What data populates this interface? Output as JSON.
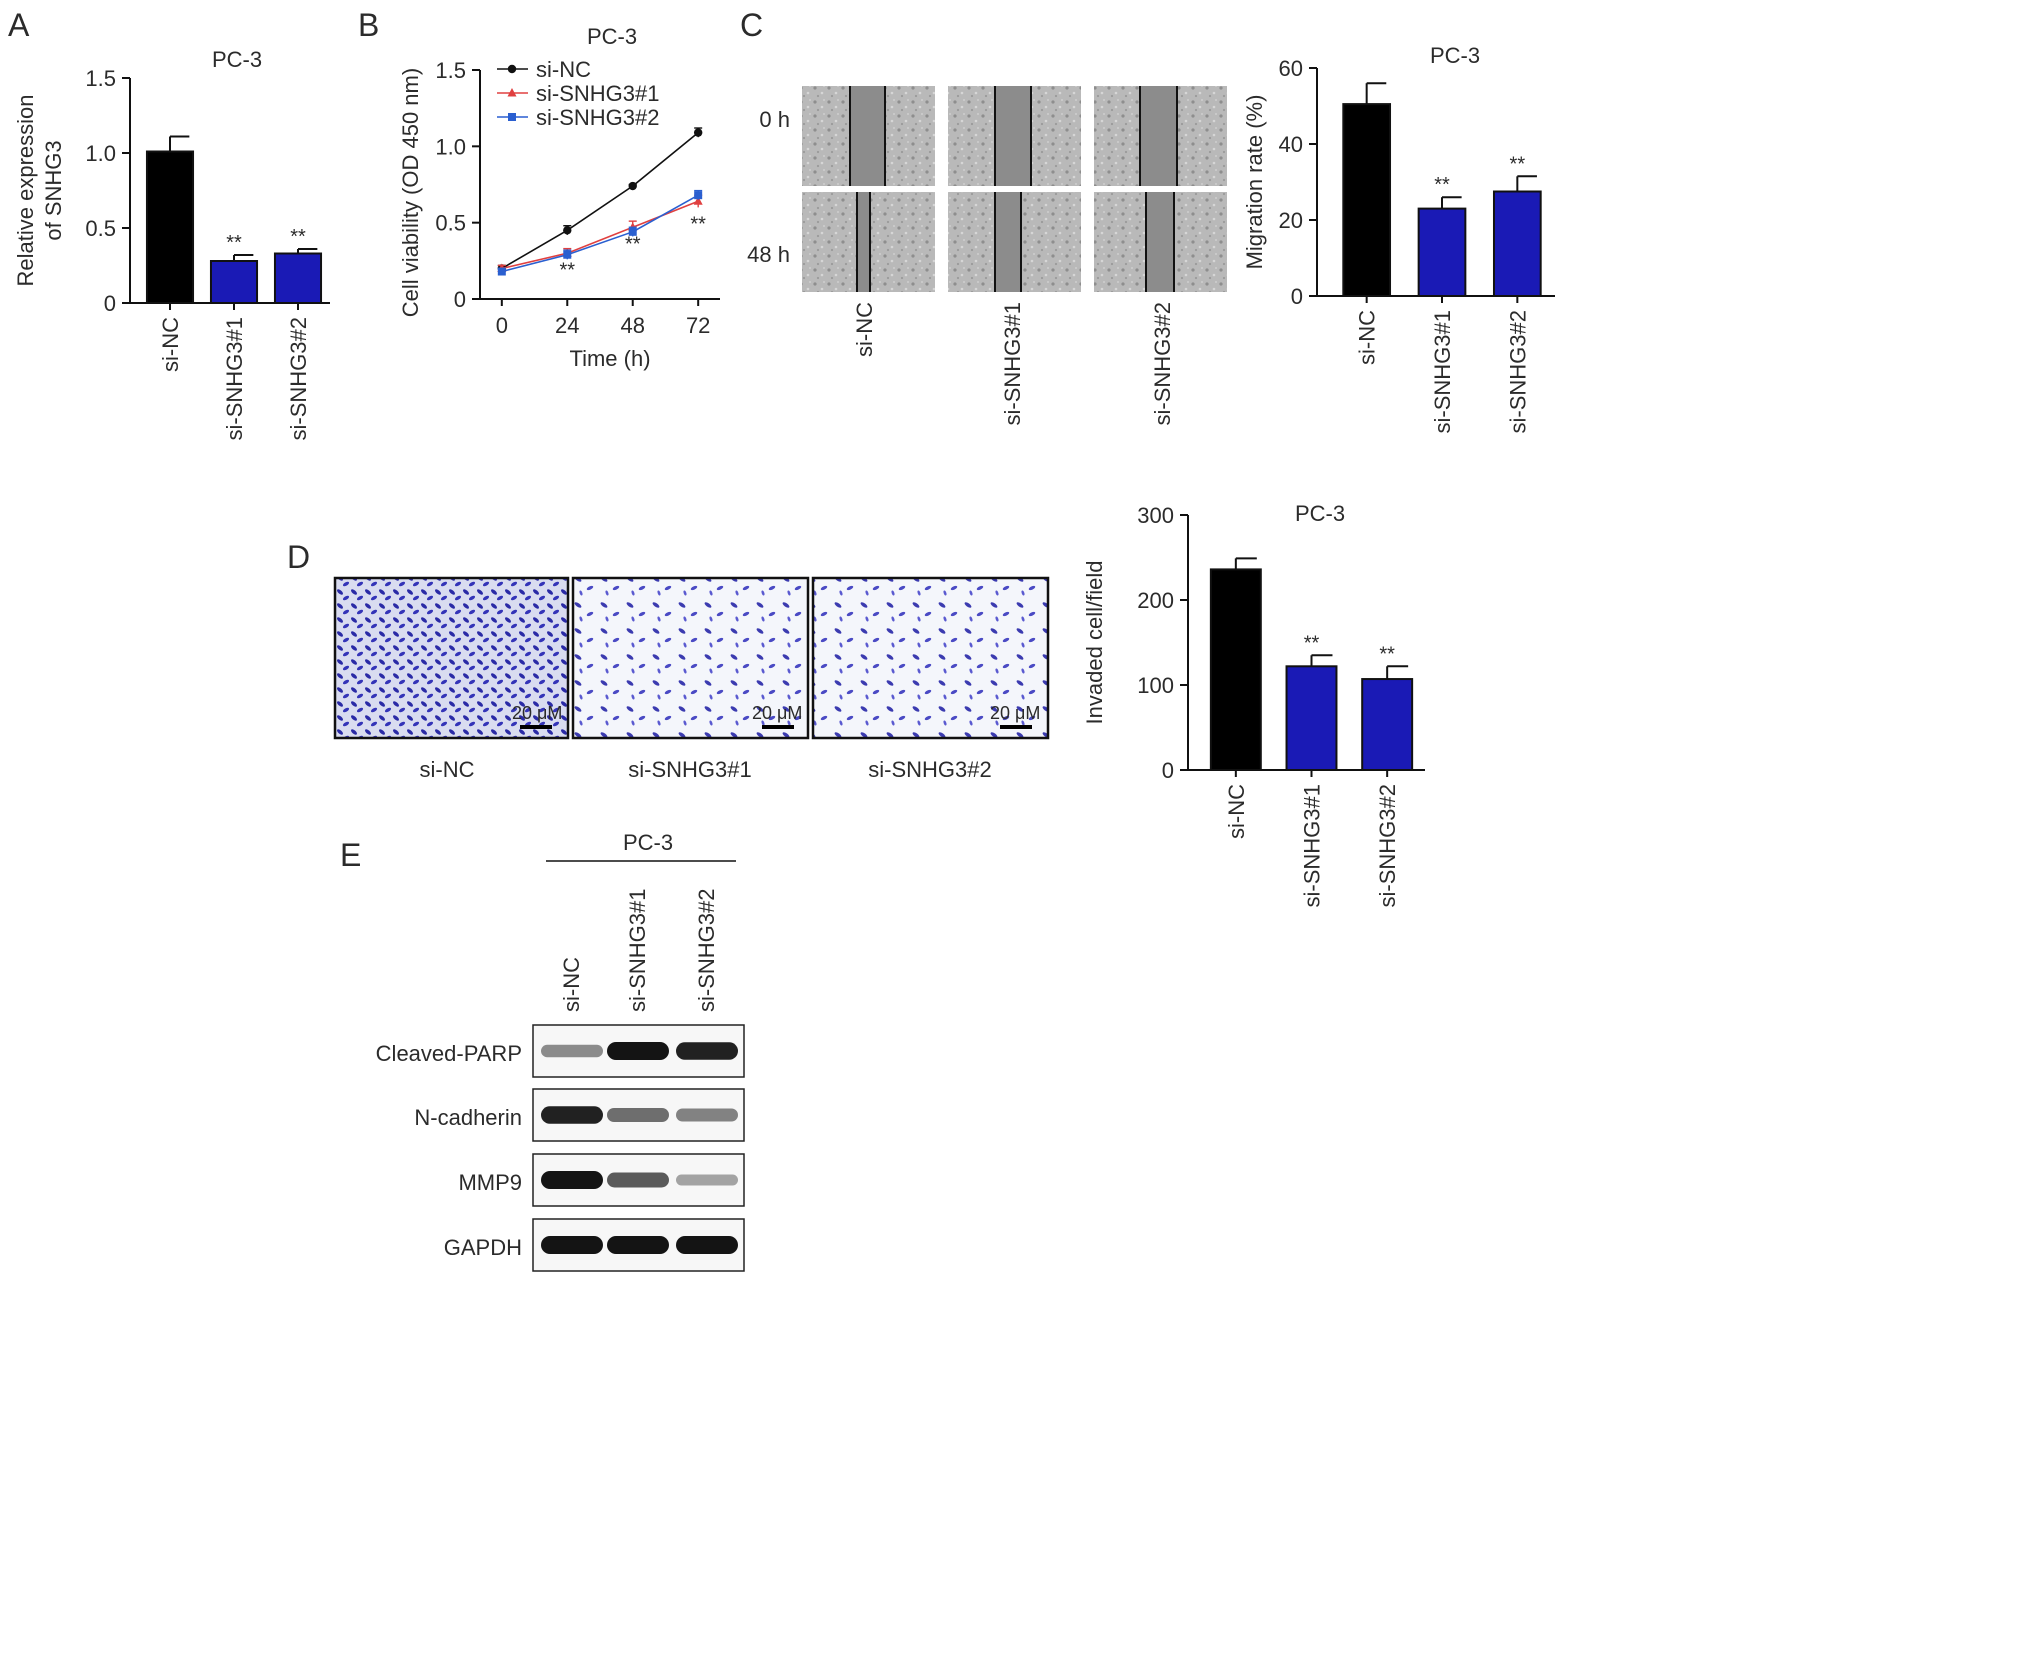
{
  "panels": {
    "a": {
      "letter": "A"
    },
    "b": {
      "letter": "B"
    },
    "c": {
      "letter": "C",
      "rows": [
        "0 h",
        "48 h"
      ],
      "groups": [
        "si-NC",
        "si-SNHG3#1",
        "si-SNHG3#2"
      ]
    },
    "d": {
      "letter": "D",
      "groups": [
        "si-NC",
        "si-SNHG3#1",
        "si-SNHG3#2"
      ],
      "scale_bar": "20 μM"
    },
    "e": {
      "letter": "E",
      "cell_line": "PC-3",
      "lanes": [
        "si-NC",
        "si-SNHG3#1",
        "si-SNHG3#2"
      ],
      "proteins": [
        {
          "name": "Cleaved-PARP",
          "levels": [
            0.45,
            1.0,
            0.95
          ]
        },
        {
          "name": "N-cadherin",
          "levels": [
            0.95,
            0.6,
            0.5
          ]
        },
        {
          "name": "MMP9",
          "levels": [
            1.0,
            0.7,
            0.3
          ]
        },
        {
          "name": "GAPDH",
          "levels": [
            1.0,
            1.0,
            1.0
          ]
        }
      ]
    }
  },
  "chart_data": [
    {
      "id": "a",
      "type": "bar",
      "title": "PC-3",
      "ylabel": [
        "Relative expression",
        "of SNHG3"
      ],
      "categories": [
        "si-NC",
        "si-SNHG3#1",
        "si-SNHG3#2"
      ],
      "values": [
        1.01,
        0.28,
        0.33
      ],
      "errors": [
        0.1,
        0.04,
        0.03
      ],
      "annotations": [
        "",
        "**",
        "**"
      ],
      "bar_colors": [
        "#000000",
        "#1a1ab5",
        "#1a1ab5"
      ],
      "ylim": [
        0,
        1.5
      ],
      "yticks": [
        0,
        0.5,
        1.0,
        1.5
      ],
      "ytick_labels": [
        "0",
        "0.5",
        "1.0",
        "1.5"
      ]
    },
    {
      "id": "b",
      "type": "line",
      "title": "PC-3",
      "xlabel": "Time (h)",
      "ylabel": "Cell viability (OD 450 nm)",
      "x": [
        0,
        24,
        48,
        72
      ],
      "xlim": [
        -8,
        80
      ],
      "xticks": [
        0,
        24,
        48,
        72
      ],
      "xtick_labels": [
        "0",
        "24",
        "48",
        "72"
      ],
      "ylim": [
        0,
        1.5
      ],
      "yticks": [
        0,
        0.5,
        1.0,
        1.5
      ],
      "ytick_labels": [
        "0",
        "0.5",
        "1.0",
        "1.5"
      ],
      "legend": "top-left",
      "series": [
        {
          "name": "si-NC",
          "values": [
            0.2,
            0.45,
            0.74,
            1.09
          ],
          "errors": [
            0.02,
            0.03,
            0.01,
            0.03
          ],
          "color": "#111111",
          "marker": "circle"
        },
        {
          "name": "si-SNHG3#1",
          "values": [
            0.2,
            0.3,
            0.47,
            0.64
          ],
          "errors": [
            0.02,
            0.03,
            0.04,
            0.04
          ],
          "color": "#e04040",
          "marker": "triangle"
        },
        {
          "name": "si-SNHG3#2",
          "values": [
            0.18,
            0.29,
            0.44,
            0.68
          ],
          "errors": [
            0.02,
            0.03,
            0.03,
            0.03
          ],
          "color": "#2a5fd0",
          "marker": "square"
        }
      ],
      "annotations": [
        {
          "x": 24,
          "y": 0.2,
          "text": "**"
        },
        {
          "x": 48,
          "y": 0.37,
          "text": "**"
        },
        {
          "x": 72,
          "y": 0.5,
          "text": "**"
        }
      ]
    },
    {
      "id": "c",
      "type": "bar",
      "title": "PC-3",
      "ylabel": "Migration rate (%)",
      "categories": [
        "si-NC",
        "si-SNHG3#1",
        "si-SNHG3#2"
      ],
      "values": [
        50.5,
        23,
        27.5
      ],
      "errors": [
        5.5,
        3,
        4
      ],
      "annotations": [
        "",
        "**",
        "**"
      ],
      "bar_colors": [
        "#000000",
        "#1a1ab5",
        "#1a1ab5"
      ],
      "ylim": [
        0,
        60
      ],
      "yticks": [
        0,
        20,
        40,
        60
      ],
      "ytick_labels": [
        "0",
        "20",
        "40",
        "60"
      ]
    },
    {
      "id": "d",
      "type": "bar",
      "title": "PC-3",
      "ylabel": "Invaded cell/field",
      "categories": [
        "si-NC",
        "si-SNHG3#1",
        "si-SNHG3#2"
      ],
      "values": [
        236,
        122,
        107
      ],
      "errors": [
        13,
        13,
        15
      ],
      "annotations": [
        "",
        "**",
        "**"
      ],
      "bar_colors": [
        "#000000",
        "#1a1ab5",
        "#1a1ab5"
      ],
      "ylim": [
        0,
        300
      ],
      "yticks": [
        0,
        100,
        200,
        300
      ],
      "ytick_labels": [
        "0",
        "100",
        "200",
        "300"
      ]
    }
  ]
}
